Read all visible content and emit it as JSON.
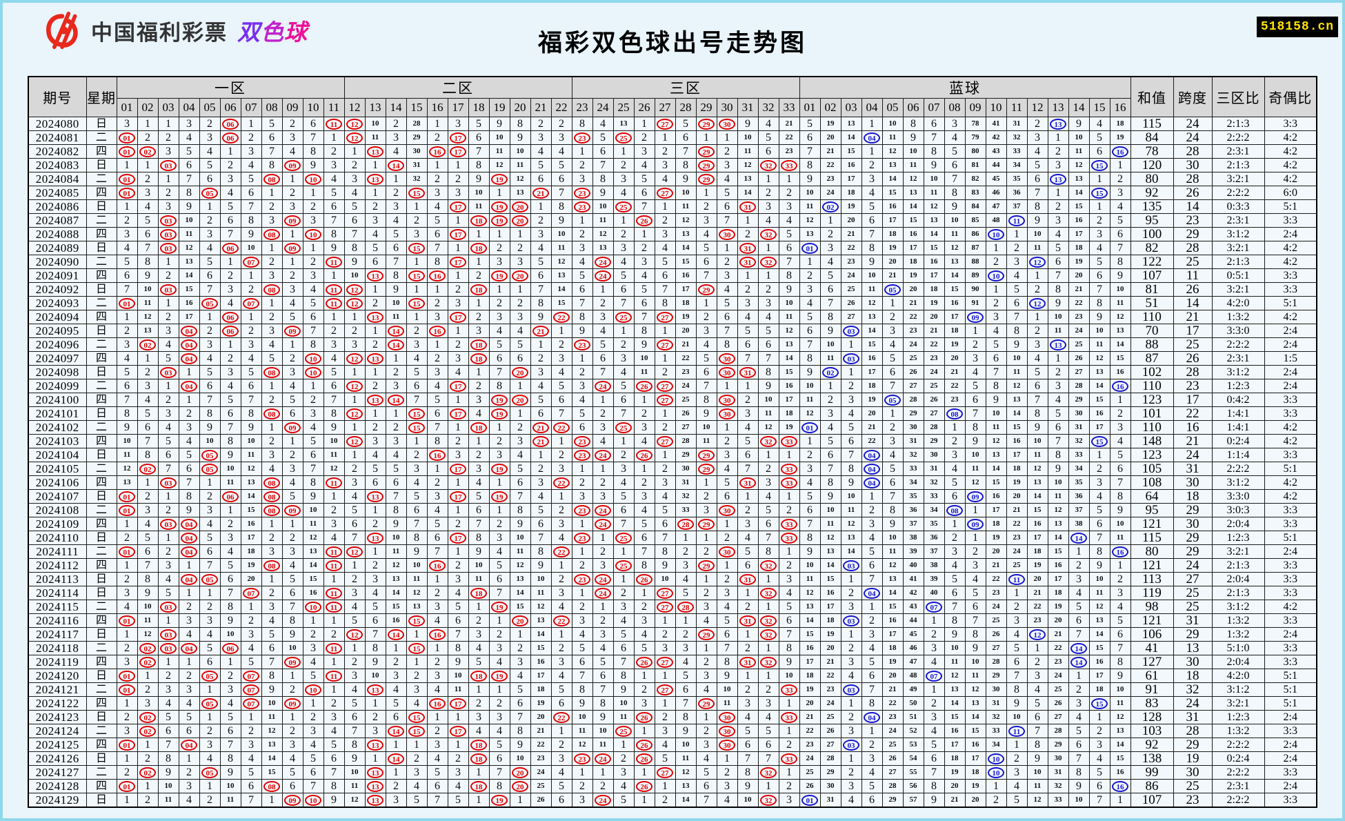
{
  "page": {
    "title": "福彩双色球出号走势图",
    "brand": {
      "org": "中国福利彩票",
      "product": "双色球"
    },
    "badge": "518158.cn"
  },
  "colors": {
    "red_ball": "#e00000",
    "blue_ball": "#1414cc",
    "header_bg": "#d8d8d8",
    "row_bg": "#f2f8fc",
    "frame": "#8fd8ec",
    "page_bg": "#e9f4fb",
    "badge_bg": "#000000",
    "badge_text": "#ffe400",
    "logo_red": "#e8291c",
    "product_gradient": [
      "#7a2ff0",
      "#c222cc",
      "#ee1099"
    ]
  },
  "chart": {
    "headers": {
      "issue": "期号",
      "week": "星期",
      "zone1": "一区",
      "zone2": "二区",
      "zone3": "三区",
      "blue": "蓝球",
      "sum": "和值",
      "span": "跨度",
      "zone_ratio": "三区比",
      "odd_even": "奇偶比"
    },
    "zone1_cols": [
      "01",
      "02",
      "03",
      "04",
      "05",
      "06",
      "07",
      "08",
      "09",
      "10",
      "11"
    ],
    "zone2_cols": [
      "12",
      "13",
      "14",
      "15",
      "16",
      "17",
      "18",
      "19",
      "20",
      "21",
      "22"
    ],
    "zone3_cols": [
      "23",
      "24",
      "25",
      "26",
      "27",
      "28",
      "29",
      "30",
      "31",
      "32",
      "33"
    ],
    "blue_cols": [
      "01",
      "02",
      "03",
      "04",
      "05",
      "06",
      "07",
      "08",
      "09",
      "10",
      "11",
      "12",
      "13",
      "14",
      "15",
      "16"
    ],
    "seed_red_miss": [
      3,
      1,
      1,
      3,
      2,
      0,
      1,
      5,
      2,
      6,
      0,
      0,
      10,
      2,
      28,
      1,
      3,
      5,
      9,
      8,
      2,
      2,
      8,
      4,
      13,
      1,
      0,
      5,
      0,
      0,
      9,
      4,
      21
    ],
    "seed_blue_miss": [
      5,
      19,
      13,
      1,
      10,
      8,
      6,
      3,
      78,
      41,
      31,
      2,
      0,
      9,
      4,
      18
    ],
    "rows": [
      {
        "issue": "2024080",
        "week": "日",
        "reds": [
          6,
          11,
          12,
          27,
          29,
          30
        ],
        "blue": 13
      },
      {
        "issue": "2024081",
        "week": "二",
        "reds": [
          1,
          6,
          12,
          17,
          23,
          25
        ],
        "blue": 4
      },
      {
        "issue": "2024082",
        "week": "四",
        "reds": [
          1,
          2,
          13,
          16,
          17,
          29
        ],
        "blue": 16
      },
      {
        "issue": "2024083",
        "week": "日",
        "reds": [
          3,
          9,
          14,
          29,
          32,
          33
        ],
        "blue": 15
      },
      {
        "issue": "2024084",
        "week": "二",
        "reds": [
          1,
          8,
          10,
          13,
          19,
          29
        ],
        "blue": 13
      },
      {
        "issue": "2024085",
        "week": "四",
        "reds": [
          1,
          5,
          15,
          21,
          23,
          27
        ],
        "blue": 15
      },
      {
        "issue": "2024086",
        "week": "日",
        "reds": [
          17,
          19,
          20,
          23,
          25,
          31
        ],
        "blue": 2
      },
      {
        "issue": "2024087",
        "week": "二",
        "reds": [
          3,
          9,
          18,
          19,
          20,
          26
        ],
        "blue": 11
      },
      {
        "issue": "2024088",
        "week": "四",
        "reds": [
          3,
          8,
          10,
          17,
          30,
          32
        ],
        "blue": 10
      },
      {
        "issue": "2024089",
        "week": "日",
        "reds": [
          3,
          6,
          9,
          15,
          18,
          31
        ],
        "blue": 1
      },
      {
        "issue": "2024090",
        "week": "二",
        "reds": [
          7,
          11,
          17,
          24,
          31,
          32
        ],
        "blue": 12
      },
      {
        "issue": "2024091",
        "week": "四",
        "reds": [
          13,
          15,
          16,
          19,
          20,
          24
        ],
        "blue": 10
      },
      {
        "issue": "2024092",
        "week": "日",
        "reds": [
          3,
          8,
          11,
          12,
          18,
          29
        ],
        "blue": 5
      },
      {
        "issue": "2024093",
        "week": "二",
        "reds": [
          1,
          5,
          7,
          11,
          12,
          15
        ],
        "blue": 12
      },
      {
        "issue": "2024094",
        "week": "四",
        "reds": [
          6,
          13,
          17,
          22,
          25,
          27
        ],
        "blue": 9
      },
      {
        "issue": "2024095",
        "week": "日",
        "reds": [
          4,
          6,
          9,
          14,
          16,
          21
        ],
        "blue": 3
      },
      {
        "issue": "2024096",
        "week": "二",
        "reds": [
          2,
          4,
          14,
          18,
          23,
          27
        ],
        "blue": 13
      },
      {
        "issue": "2024097",
        "week": "四",
        "reds": [
          4,
          10,
          12,
          13,
          18,
          30
        ],
        "blue": 3
      },
      {
        "issue": "2024098",
        "week": "日",
        "reds": [
          3,
          8,
          10,
          20,
          30,
          31
        ],
        "blue": 2
      },
      {
        "issue": "2024099",
        "week": "二",
        "reds": [
          4,
          12,
          17,
          24,
          26,
          27
        ],
        "blue": 16
      },
      {
        "issue": "2024100",
        "week": "四",
        "reds": [
          13,
          14,
          19,
          20,
          27,
          30
        ],
        "blue": 5
      },
      {
        "issue": "2024101",
        "week": "日",
        "reds": [
          8,
          12,
          15,
          17,
          19,
          30
        ],
        "blue": 8
      },
      {
        "issue": "2024102",
        "week": "二",
        "reds": [
          9,
          15,
          18,
          21,
          22,
          25
        ],
        "blue": 1
      },
      {
        "issue": "2024103",
        "week": "四",
        "reds": [
          12,
          21,
          23,
          27,
          32,
          33
        ],
        "blue": 15
      },
      {
        "issue": "2024104",
        "week": "日",
        "reds": [
          5,
          16,
          23,
          24,
          26,
          29
        ],
        "blue": 4
      },
      {
        "issue": "2024105",
        "week": "二",
        "reds": [
          2,
          5,
          17,
          19,
          29,
          33
        ],
        "blue": 4
      },
      {
        "issue": "2024106",
        "week": "四",
        "reds": [
          3,
          8,
          11,
          22,
          31,
          33
        ],
        "blue": 4
      },
      {
        "issue": "2024107",
        "week": "日",
        "reds": [
          1,
          6,
          8,
          13,
          17,
          19
        ],
        "blue": 9
      },
      {
        "issue": "2024108",
        "week": "二",
        "reds": [
          1,
          8,
          9,
          23,
          24,
          30
        ],
        "blue": 8
      },
      {
        "issue": "2024109",
        "week": "四",
        "reds": [
          3,
          4,
          24,
          28,
          29,
          33
        ],
        "blue": 9
      },
      {
        "issue": "2024110",
        "week": "日",
        "reds": [
          4,
          13,
          17,
          23,
          25,
          33
        ],
        "blue": 14
      },
      {
        "issue": "2024111",
        "week": "二",
        "reds": [
          1,
          4,
          11,
          12,
          22,
          30
        ],
        "blue": 16
      },
      {
        "issue": "2024112",
        "week": "四",
        "reds": [
          8,
          11,
          16,
          25,
          29,
          32
        ],
        "blue": 3
      },
      {
        "issue": "2024113",
        "week": "日",
        "reds": [
          4,
          5,
          23,
          24,
          26,
          31
        ],
        "blue": 11
      },
      {
        "issue": "2024114",
        "week": "日",
        "reds": [
          7,
          11,
          18,
          24,
          27,
          32
        ],
        "blue": 4
      },
      {
        "issue": "2024115",
        "week": "二",
        "reds": [
          3,
          10,
          11,
          19,
          27,
          28
        ],
        "blue": 7
      },
      {
        "issue": "2024116",
        "week": "四",
        "reds": [
          1,
          15,
          20,
          22,
          31,
          32
        ],
        "blue": 3
      },
      {
        "issue": "2024117",
        "week": "日",
        "reds": [
          3,
          12,
          14,
          16,
          29,
          32
        ],
        "blue": 12
      },
      {
        "issue": "2024118",
        "week": "二",
        "reds": [
          2,
          3,
          4,
          6,
          11,
          15
        ],
        "blue": 14
      },
      {
        "issue": "2024119",
        "week": "四",
        "reds": [
          2,
          9,
          26,
          27,
          31,
          32
        ],
        "blue": 14
      },
      {
        "issue": "2024120",
        "week": "日",
        "reds": [
          1,
          5,
          7,
          11,
          18,
          19
        ],
        "blue": 7
      },
      {
        "issue": "2024121",
        "week": "二",
        "reds": [
          1,
          7,
          10,
          13,
          27,
          33
        ],
        "blue": 3
      },
      {
        "issue": "2024122",
        "week": "四",
        "reds": [
          5,
          7,
          9,
          16,
          17,
          29
        ],
        "blue": 15
      },
      {
        "issue": "2024123",
        "week": "日",
        "reds": [
          2,
          15,
          22,
          26,
          30,
          33
        ],
        "blue": 4
      },
      {
        "issue": "2024124",
        "week": "二",
        "reds": [
          2,
          14,
          15,
          17,
          25,
          30
        ],
        "blue": 11
      },
      {
        "issue": "2024125",
        "week": "四",
        "reds": [
          1,
          4,
          13,
          18,
          26,
          30
        ],
        "blue": 3
      },
      {
        "issue": "2024126",
        "week": "日",
        "reds": [
          14,
          18,
          23,
          24,
          26,
          33
        ],
        "blue": 10
      },
      {
        "issue": "2024127",
        "week": "二",
        "reds": [
          2,
          5,
          13,
          20,
          27,
          32
        ],
        "blue": 10
      },
      {
        "issue": "2024128",
        "week": "四",
        "reds": [
          1,
          8,
          13,
          18,
          20,
          26
        ],
        "blue": 16
      },
      {
        "issue": "2024129",
        "week": "日",
        "reds": [
          9,
          10,
          13,
          19,
          24,
          32
        ],
        "blue": 1
      }
    ]
  }
}
